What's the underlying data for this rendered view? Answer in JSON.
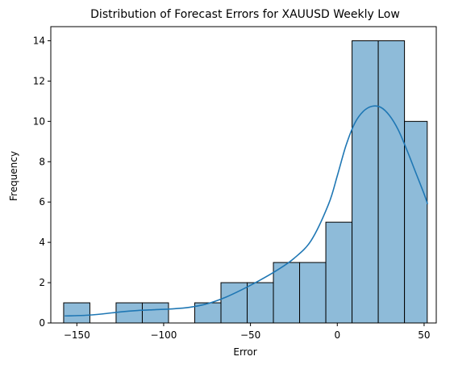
{
  "chart_data": {
    "type": "bar",
    "title": "Distribution of Forecast Errors for XAUUSD Weekly Low",
    "xlabel": "Error",
    "ylabel": "Frequency",
    "xlim": [
      -165,
      57
    ],
    "ylim": [
      0,
      14.7
    ],
    "xticks": [
      -150,
      -100,
      -50,
      0,
      50
    ],
    "xtick_labels": [
      "−150",
      "−100",
      "−50",
      "0",
      "50"
    ],
    "yticks": [
      0,
      2,
      4,
      6,
      8,
      10,
      12,
      14
    ],
    "ytick_labels": [
      "0",
      "2",
      "4",
      "6",
      "8",
      "10",
      "12",
      "14"
    ],
    "bin_edges": [
      -157.6,
      -142.5,
      -127.4,
      -112.3,
      -97.2,
      -82.1,
      -67.0,
      -51.9,
      -36.8,
      -21.7,
      -6.6,
      8.5,
      23.6,
      38.7,
      51.8
    ],
    "counts": [
      1,
      0,
      1,
      1,
      0,
      1,
      2,
      2,
      3,
      3,
      5,
      14,
      14,
      10
    ],
    "kde": {
      "x": [
        -157,
        -145,
        -135,
        -125,
        -115,
        -105,
        -95,
        -85,
        -75,
        -65,
        -55,
        -45,
        -35,
        -25,
        -15,
        -5,
        0,
        5,
        10,
        15,
        20,
        25,
        30,
        35,
        40,
        45,
        50,
        52
      ],
      "y": [
        0.35,
        0.38,
        0.45,
        0.55,
        0.62,
        0.66,
        0.7,
        0.78,
        0.95,
        1.25,
        1.65,
        2.1,
        2.6,
        3.2,
        4.1,
        5.9,
        7.3,
        8.8,
        9.9,
        10.5,
        10.75,
        10.7,
        10.3,
        9.6,
        8.6,
        7.5,
        6.4,
        5.9
      ]
    },
    "bar_color": "#8ebbd9",
    "edge_color": "#000000",
    "kde_color": "#1f77b4",
    "grid": false
  }
}
